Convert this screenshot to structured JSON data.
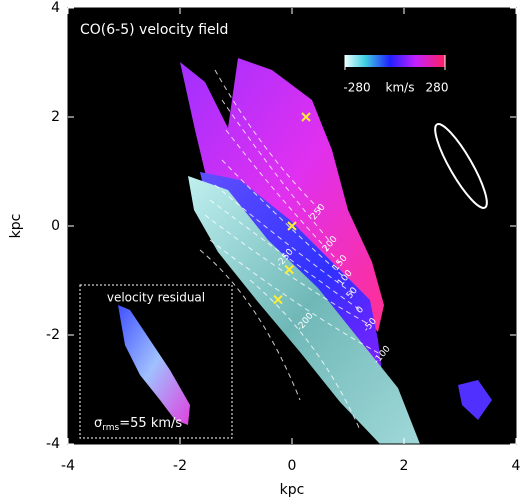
{
  "chart_data": {
    "type": "image",
    "title": "CO(6-5) velocity field",
    "xlabel": "kpc",
    "ylabel": "kpc",
    "xlim": [
      -4,
      4
    ],
    "ylim": [
      -4,
      4
    ],
    "xticks": [
      -4,
      -2,
      0,
      2,
      4
    ],
    "yticks": [
      -4,
      -2,
      0,
      2,
      4
    ],
    "colorbar": {
      "clim": [
        -280,
        280
      ],
      "ticks": [
        -280,
        280
      ],
      "unit": "km/s"
    },
    "contour_levels": [
      250,
      200,
      150,
      100,
      50,
      0,
      -50,
      -100,
      -250,
      -200
    ],
    "markers": {
      "color": "#ffee33",
      "x": [
        0.25,
        0,
        -0.05,
        -0.25
      ],
      "y": [
        2.0,
        0,
        -0.8,
        -1.35
      ]
    },
    "inset": {
      "title": "velocity residual",
      "sigma_symbol": "σ",
      "sigma_subscript": "rms",
      "sigma_value": "=55 km/s"
    }
  }
}
